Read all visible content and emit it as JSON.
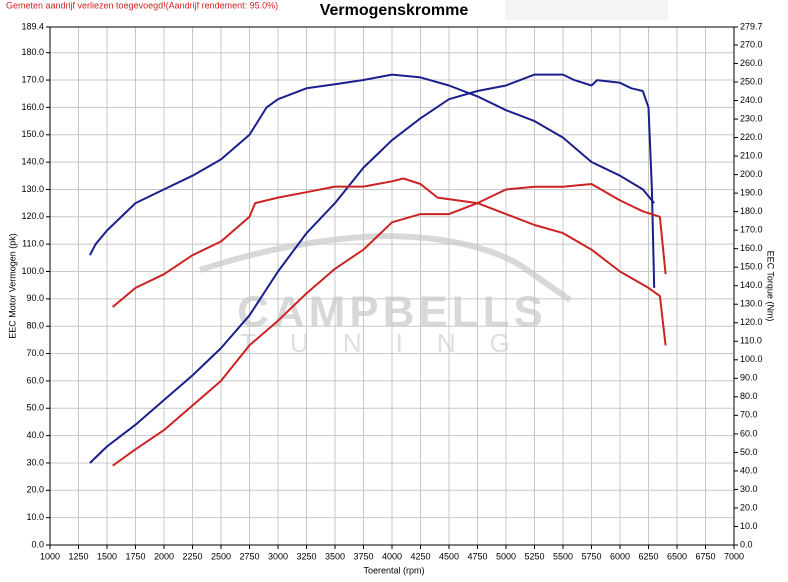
{
  "chart_data": {
    "type": "line",
    "title": "Vermogenskromme",
    "note": "Gemeten aandrijf verliezen toegevoegd!(Aandrijf rendement: 95.0%)",
    "watermark": [
      "CAMPBELLS",
      "TUNING"
    ],
    "xlabel": "Toerental (rpm)",
    "ylabel": "EEC Motor Vermogen (pk)",
    "y2label": "EEC Torque (Nm)",
    "xlim": [
      1000,
      7000
    ],
    "xticks": [
      1000,
      1250,
      1500,
      1750,
      2000,
      2250,
      2500,
      2750,
      3000,
      3250,
      3500,
      3750,
      4000,
      4250,
      4500,
      4750,
      5000,
      5250,
      5500,
      5750,
      6000,
      6250,
      6500,
      6750,
      7000
    ],
    "ylim": [
      0,
      189.4
    ],
    "yticks": [
      {
        "value": 0,
        "label": "0.0"
      },
      {
        "value": 10,
        "label": "10.0"
      },
      {
        "value": 20,
        "label": "20.0"
      },
      {
        "value": 30,
        "label": "30.0"
      },
      {
        "value": 40,
        "label": "40.0"
      },
      {
        "value": 50,
        "label": "50.0"
      },
      {
        "value": 60,
        "label": "60.0"
      },
      {
        "value": 70,
        "label": "70.0"
      },
      {
        "value": 80,
        "label": "80.0"
      },
      {
        "value": 90,
        "label": "90.0"
      },
      {
        "value": 100,
        "label": "100.0"
      },
      {
        "value": 110,
        "label": "110.0"
      },
      {
        "value": 120,
        "label": "120.0"
      },
      {
        "value": 130,
        "label": "130.0"
      },
      {
        "value": 140,
        "label": "140.0"
      },
      {
        "value": 150,
        "label": "150.0"
      },
      {
        "value": 160,
        "label": "160.0"
      },
      {
        "value": 170,
        "label": "170.0"
      },
      {
        "value": 180,
        "label": "180.0"
      },
      189.4
    ],
    "y2lim": [
      0,
      279.7
    ],
    "y2ticks": [
      {
        "value": 0,
        "label": "0.0"
      },
      {
        "value": 10,
        "label": "10.0"
      },
      {
        "value": 20,
        "label": "20.0"
      },
      {
        "value": 30,
        "label": "30.0"
      },
      {
        "value": 40,
        "label": "40.0"
      },
      {
        "value": 50,
        "label": "50.0"
      },
      {
        "value": 60,
        "label": "60.0"
      },
      {
        "value": 70,
        "label": "70.0"
      },
      {
        "value": 80,
        "label": "80.0"
      },
      {
        "value": 90,
        "label": "90.0"
      },
      {
        "value": 100,
        "label": "100.0"
      },
      {
        "value": 110,
        "label": "110.0"
      },
      {
        "value": 120,
        "label": "120.0"
      },
      {
        "value": 130,
        "label": "130.0"
      },
      {
        "value": 140,
        "label": "140.0"
      },
      {
        "value": 150,
        "label": "150.0"
      },
      {
        "value": 160,
        "label": "160.0"
      },
      {
        "value": 170,
        "label": "170.0"
      },
      {
        "value": 180,
        "label": "180.0"
      },
      {
        "value": 190,
        "label": "190.0"
      },
      {
        "value": 200,
        "label": "200.0"
      },
      {
        "value": 210,
        "label": "210.0"
      },
      {
        "value": 220,
        "label": "220.0"
      },
      {
        "value": 230,
        "label": "230.0"
      },
      {
        "value": 240,
        "label": "240.0"
      },
      {
        "value": 250,
        "label": "250.0"
      },
      {
        "value": 260,
        "label": "260.0"
      },
      {
        "value": 270,
        "label": "270.0"
      },
      279.7
    ],
    "grid": true,
    "series": [
      {
        "color": "#1a1f8c",
        "axis": "y2",
        "x": [
          1350,
          1400,
          1500,
          1750,
          2000,
          2250,
          2500,
          2750,
          2900,
          3000,
          3250,
          3500,
          3750,
          4000,
          4250,
          4500,
          4750,
          5000,
          5250,
          5500,
          5750,
          6000,
          6200,
          6300
        ],
        "values": [
          156.5,
          162.4,
          169.8,
          184.6,
          192,
          199.4,
          208.2,
          221.5,
          236.3,
          240.7,
          246.6,
          248.8,
          251.1,
          254,
          252.5,
          248.1,
          242.2,
          234.8,
          228.9,
          220,
          206.8,
          199.4,
          192,
          184.6
        ]
      },
      {
        "color": "#1a1f8c",
        "x": [
          1350,
          1500,
          1750,
          2000,
          2250,
          2500,
          2750,
          3000,
          3250,
          3500,
          3750,
          4000,
          4250,
          4500,
          4750,
          5000,
          5250,
          5500,
          5600,
          5750,
          5800,
          6000,
          6100,
          6200,
          6250,
          6280,
          6300
        ],
        "values": [
          30,
          36,
          44,
          53,
          62,
          72,
          84,
          100,
          114,
          125,
          138,
          148,
          156,
          163,
          166,
          168,
          172,
          172,
          170,
          168,
          170,
          169,
          167,
          166,
          160,
          130,
          94
        ]
      },
      {
        "color": "#cc2222",
        "axis": "y2",
        "x": [
          1550,
          1750,
          2000,
          2250,
          2500,
          2750,
          2800,
          3000,
          3250,
          3500,
          3750,
          4000,
          4100,
          4250,
          4400,
          4750,
          5000,
          5250,
          5500,
          5750,
          6000,
          6250,
          6350,
          6400
        ],
        "values": [
          128.5,
          138.8,
          146.2,
          156.5,
          163.9,
          177.2,
          184.6,
          187.6,
          190.5,
          193.5,
          193.5,
          196.4,
          197.9,
          194.9,
          187.6,
          184.6,
          178.7,
          172.8,
          168.4,
          159.5,
          147.7,
          138.8,
          134.4,
          107.8
        ]
      },
      {
        "color": "#cc2222",
        "x": [
          1550,
          1750,
          2000,
          2250,
          2500,
          2750,
          3000,
          3250,
          3500,
          3750,
          4000,
          4250,
          4500,
          4750,
          4900,
          5000,
          5250,
          5500,
          5750,
          6000,
          6200,
          6350,
          6400
        ],
        "values": [
          29,
          35,
          42,
          51,
          60,
          73,
          82,
          92,
          101,
          108,
          118,
          121,
          121,
          125,
          128,
          130,
          131,
          131,
          132,
          126,
          122,
          120,
          99
        ]
      }
    ]
  }
}
